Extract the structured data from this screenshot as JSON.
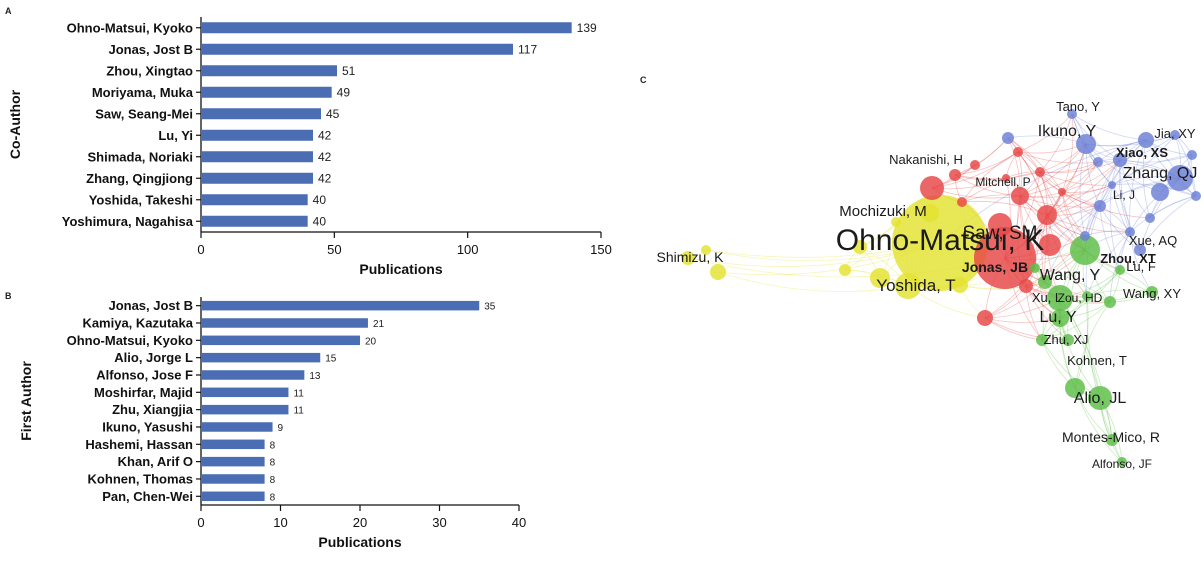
{
  "panels": {
    "a": "A",
    "b": "B",
    "c": "C"
  },
  "chart_data": [
    {
      "type": "bar",
      "orientation": "horizontal",
      "panel": "A",
      "categories": [
        "Ohno-Matsui, Kyoko",
        "Jonas, Jost B",
        "Zhou, Xingtao",
        "Moriyama, Muka",
        "Saw, Seang-Mei",
        "Lu, Yi",
        "Shimada, Noriaki",
        "Zhang, Qingjiong",
        "Yoshida, Takeshi",
        "Yoshimura, Nagahisa"
      ],
      "values": [
        139,
        117,
        51,
        49,
        45,
        42,
        42,
        42,
        40,
        40
      ],
      "xlabel": "Publications",
      "ylabel": "Co-Author",
      "xlim": [
        0,
        150
      ],
      "xticks": [
        0,
        50,
        100,
        150
      ],
      "bar_color": "#4a6db3"
    },
    {
      "type": "bar",
      "orientation": "horizontal",
      "panel": "B",
      "categories": [
        "Jonas, Jost B",
        "Kamiya, Kazutaka",
        "Ohno-Matsui, Kyoko",
        "Alio, Jorge L",
        "Alfonso, Jose F",
        "Moshirfar, Majid",
        "Zhu, Xiangjia",
        "Ikuno, Yasushi",
        "Hashemi, Hassan",
        "Khan, Arif O",
        "Kohnen, Thomas",
        "Pan, Chen-Wei"
      ],
      "values": [
        35,
        21,
        20,
        15,
        13,
        11,
        11,
        9,
        8,
        8,
        8,
        8
      ],
      "xlabel": "Publications",
      "ylabel": "First Author",
      "xlim": [
        0,
        40
      ],
      "xticks": [
        0,
        10,
        20,
        30,
        40
      ],
      "bar_color": "#4a6db3"
    }
  ],
  "network": {
    "clusters": {
      "red": "#e64545",
      "yellow": "#e3e230",
      "green": "#5cbd45",
      "blue": "#6b7fd6"
    },
    "labels": [
      {
        "text": "Ohno-Matsui, K",
        "cluster": "yellow",
        "emphasis": "large"
      },
      {
        "text": "Saw, SM",
        "cluster": "red",
        "emphasis": "medium"
      },
      {
        "text": "Jonas, JB",
        "cluster": "red",
        "emphasis": "bold"
      },
      {
        "text": "Yoshida, T",
        "cluster": "yellow",
        "emphasis": "medium"
      },
      {
        "text": "Mochizuki, M",
        "cluster": "yellow",
        "emphasis": "normal"
      },
      {
        "text": "Shimizu, K",
        "cluster": "yellow",
        "emphasis": "normal"
      },
      {
        "text": "Nakanishi, H",
        "cluster": "red",
        "emphasis": "normal"
      },
      {
        "text": "Mitchell, P",
        "cluster": "red",
        "emphasis": "small"
      },
      {
        "text": "Ikuno, Y",
        "cluster": "blue",
        "emphasis": "medium"
      },
      {
        "text": "Tano, Y",
        "cluster": "blue",
        "emphasis": "normal"
      },
      {
        "text": "Jia, XY",
        "cluster": "blue",
        "emphasis": "normal"
      },
      {
        "text": "Xiao, XS",
        "cluster": "blue",
        "emphasis": "bold"
      },
      {
        "text": "Zhang, QJ",
        "cluster": "blue",
        "emphasis": "medium"
      },
      {
        "text": "Li, J",
        "cluster": "blue",
        "emphasis": "small"
      },
      {
        "text": "Xue, AQ",
        "cluster": "blue",
        "emphasis": "normal"
      },
      {
        "text": "Lu, F",
        "cluster": "blue",
        "emphasis": "normal"
      },
      {
        "text": "Zhou, XT",
        "cluster": "green",
        "emphasis": "bold"
      },
      {
        "text": "Wang, Y",
        "cluster": "green",
        "emphasis": "medium"
      },
      {
        "text": "Xu, L",
        "cluster": "red",
        "emphasis": "normal"
      },
      {
        "text": "Zou, HD",
        "cluster": "green",
        "emphasis": "small"
      },
      {
        "text": "Wang, XY",
        "cluster": "green",
        "emphasis": "normal"
      },
      {
        "text": "Lu, Y",
        "cluster": "green",
        "emphasis": "medium"
      },
      {
        "text": "Zhu, XJ",
        "cluster": "green",
        "emphasis": "normal"
      },
      {
        "text": "Kohnen, T",
        "cluster": "green",
        "emphasis": "normal"
      },
      {
        "text": "Alio, JL",
        "cluster": "green",
        "emphasis": "medium"
      },
      {
        "text": "Montes-Mico, R",
        "cluster": "green",
        "emphasis": "normal"
      },
      {
        "text": "Alfonso, JF",
        "cluster": "green",
        "emphasis": "small"
      }
    ]
  }
}
